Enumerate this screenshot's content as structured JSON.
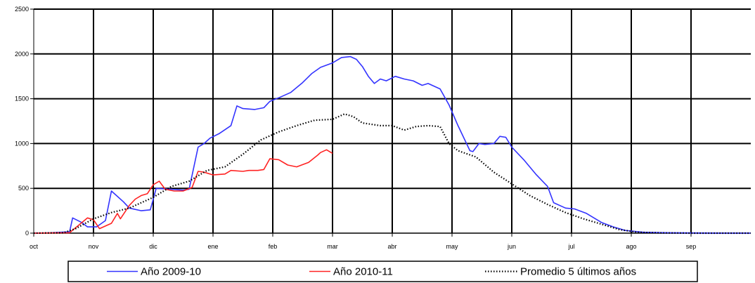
{
  "chart_data": {
    "type": "line",
    "categories": [
      "oct",
      "nov",
      "dic",
      "ene",
      "feb",
      "mar",
      "abr",
      "may",
      "jun",
      "jul",
      "ago",
      "sep"
    ],
    "ylim": [
      0,
      2500
    ],
    "yticks": [
      0,
      500,
      1000,
      1500,
      2000,
      2500
    ],
    "grid": true,
    "legend_position": "bottom",
    "series": [
      {
        "name": "Año 2009-10",
        "color": "#3333ff",
        "style": "solid",
        "points": [
          [
            0,
            0
          ],
          [
            0.3,
            5
          ],
          [
            0.6,
            15
          ],
          [
            0.65,
            170
          ],
          [
            0.8,
            120
          ],
          [
            0.9,
            70
          ],
          [
            1.05,
            70
          ],
          [
            1.2,
            140
          ],
          [
            1.3,
            470
          ],
          [
            1.5,
            350
          ],
          [
            1.6,
            280
          ],
          [
            1.8,
            250
          ],
          [
            1.95,
            260
          ],
          [
            2.05,
            500
          ],
          [
            2.3,
            490
          ],
          [
            2.5,
            480
          ],
          [
            2.6,
            490
          ],
          [
            2.75,
            960
          ],
          [
            2.85,
            1000
          ],
          [
            2.95,
            1060
          ],
          [
            3.1,
            1110
          ],
          [
            3.3,
            1200
          ],
          [
            3.4,
            1420
          ],
          [
            3.5,
            1390
          ],
          [
            3.7,
            1380
          ],
          [
            3.85,
            1400
          ],
          [
            3.95,
            1470
          ],
          [
            4.1,
            1510
          ],
          [
            4.3,
            1570
          ],
          [
            4.5,
            1680
          ],
          [
            4.65,
            1780
          ],
          [
            4.8,
            1850
          ],
          [
            5.0,
            1900
          ],
          [
            5.15,
            1960
          ],
          [
            5.3,
            1970
          ],
          [
            5.4,
            1940
          ],
          [
            5.5,
            1860
          ],
          [
            5.6,
            1750
          ],
          [
            5.7,
            1670
          ],
          [
            5.8,
            1720
          ],
          [
            5.9,
            1700
          ],
          [
            6.05,
            1750
          ],
          [
            6.2,
            1720
          ],
          [
            6.35,
            1700
          ],
          [
            6.5,
            1650
          ],
          [
            6.6,
            1670
          ],
          [
            6.8,
            1610
          ],
          [
            6.95,
            1430
          ],
          [
            7.1,
            1200
          ],
          [
            7.3,
            920
          ],
          [
            7.35,
            910
          ],
          [
            7.45,
            1000
          ],
          [
            7.55,
            990
          ],
          [
            7.7,
            1000
          ],
          [
            7.8,
            1080
          ],
          [
            7.9,
            1070
          ],
          [
            8.0,
            960
          ],
          [
            8.2,
            820
          ],
          [
            8.4,
            660
          ],
          [
            8.6,
            520
          ],
          [
            8.7,
            340
          ],
          [
            8.9,
            280
          ],
          [
            9.05,
            270
          ],
          [
            9.25,
            220
          ],
          [
            9.5,
            120
          ],
          [
            9.7,
            70
          ],
          [
            9.9,
            30
          ],
          [
            10.2,
            10
          ],
          [
            10.6,
            5
          ],
          [
            11.0,
            2
          ],
          [
            11.5,
            0
          ],
          [
            12,
            0
          ]
        ]
      },
      {
        "name": "Año 2010-11",
        "color": "#ff2222",
        "style": "solid",
        "points": [
          [
            0,
            0
          ],
          [
            0.3,
            2
          ],
          [
            0.6,
            5
          ],
          [
            0.9,
            170
          ],
          [
            1.0,
            150
          ],
          [
            1.1,
            50
          ],
          [
            1.3,
            110
          ],
          [
            1.4,
            220
          ],
          [
            1.45,
            160
          ],
          [
            1.6,
            310
          ],
          [
            1.7,
            380
          ],
          [
            1.8,
            420
          ],
          [
            1.9,
            440
          ],
          [
            2.0,
            540
          ],
          [
            2.1,
            580
          ],
          [
            2.2,
            490
          ],
          [
            2.35,
            470
          ],
          [
            2.5,
            470
          ],
          [
            2.65,
            510
          ],
          [
            2.75,
            690
          ],
          [
            2.85,
            680
          ],
          [
            3.0,
            650
          ],
          [
            3.2,
            660
          ],
          [
            3.3,
            700
          ],
          [
            3.5,
            690
          ],
          [
            3.6,
            700
          ],
          [
            3.75,
            700
          ],
          [
            3.85,
            710
          ],
          [
            3.95,
            830
          ],
          [
            4.1,
            820
          ],
          [
            4.25,
            760
          ],
          [
            4.4,
            740
          ],
          [
            4.6,
            790
          ],
          [
            4.75,
            870
          ],
          [
            4.8,
            900
          ],
          [
            4.9,
            930
          ],
          [
            5.0,
            890
          ]
        ]
      },
      {
        "name": "Promedio 5 últimos años",
        "color": "#000000",
        "style": "dotted",
        "points": [
          [
            0,
            0
          ],
          [
            0.5,
            5
          ],
          [
            0.7,
            50
          ],
          [
            1.0,
            160
          ],
          [
            1.3,
            230
          ],
          [
            1.6,
            280
          ],
          [
            2.0,
            400
          ],
          [
            2.3,
            520
          ],
          [
            2.6,
            580
          ],
          [
            2.9,
            700
          ],
          [
            3.2,
            740
          ],
          [
            3.5,
            880
          ],
          [
            3.8,
            1040
          ],
          [
            4.1,
            1130
          ],
          [
            4.4,
            1200
          ],
          [
            4.7,
            1260
          ],
          [
            5.0,
            1270
          ],
          [
            5.2,
            1330
          ],
          [
            5.35,
            1300
          ],
          [
            5.5,
            1230
          ],
          [
            5.8,
            1200
          ],
          [
            6.0,
            1200
          ],
          [
            6.2,
            1150
          ],
          [
            6.4,
            1190
          ],
          [
            6.6,
            1200
          ],
          [
            6.8,
            1190
          ],
          [
            6.95,
            1000
          ],
          [
            7.1,
            920
          ],
          [
            7.4,
            850
          ],
          [
            7.7,
            680
          ],
          [
            8.0,
            550
          ],
          [
            8.3,
            420
          ],
          [
            8.6,
            320
          ],
          [
            8.9,
            230
          ],
          [
            9.2,
            160
          ],
          [
            9.5,
            100
          ],
          [
            9.8,
            40
          ],
          [
            10.1,
            10
          ],
          [
            10.5,
            3
          ],
          [
            11.0,
            0
          ],
          [
            12,
            0
          ]
        ]
      }
    ]
  }
}
